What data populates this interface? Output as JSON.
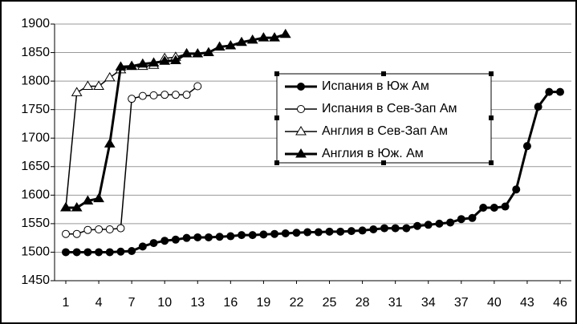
{
  "chart_data": {
    "type": "line",
    "xlim": [
      1,
      46
    ],
    "xticks": [
      1,
      4,
      7,
      10,
      13,
      16,
      19,
      22,
      25,
      28,
      31,
      34,
      37,
      40,
      43,
      46
    ],
    "ylim": [
      1450,
      1900
    ],
    "yticks": [
      1450,
      1500,
      1550,
      1600,
      1650,
      1700,
      1750,
      1800,
      1850,
      1900
    ],
    "grid": true,
    "legend": "upper center",
    "series": [
      {
        "name": "Испания в Юж Ам",
        "color": "#000000",
        "marker": "circle",
        "marker_fill": "#000000",
        "line_width": 3,
        "x": [
          1,
          2,
          3,
          4,
          5,
          6,
          7,
          8,
          9,
          10,
          11,
          12,
          13,
          14,
          15,
          16,
          17,
          18,
          19,
          20,
          21,
          22,
          23,
          24,
          25,
          26,
          27,
          28,
          29,
          30,
          31,
          32,
          33,
          34,
          35,
          36,
          37,
          38,
          39,
          40,
          41,
          42,
          43,
          44,
          45,
          46
        ],
        "values": [
          1500,
          1500,
          1500,
          1500,
          1500,
          1501,
          1502,
          1510,
          1516,
          1520,
          1522,
          1525,
          1526,
          1526,
          1527,
          1528,
          1530,
          1530,
          1531,
          1532,
          1533,
          1534,
          1535,
          1535,
          1536,
          1536,
          1537,
          1538,
          1540,
          1542,
          1542,
          1542,
          1546,
          1548,
          1550,
          1552,
          1558,
          1560,
          1578,
          1578,
          1580,
          1610,
          1686,
          1755,
          1781,
          1781
        ]
      },
      {
        "name": "Испания в Сев-Зап Ам",
        "color": "#000000",
        "marker": "circle",
        "marker_fill": "#ffffff",
        "line_width": 1.5,
        "x": [
          1,
          2,
          3,
          4,
          5,
          6,
          7,
          8,
          9,
          10,
          11,
          12,
          13
        ],
        "values": [
          1532,
          1532,
          1539,
          1540,
          1540,
          1542,
          1769,
          1774,
          1775,
          1776,
          1776,
          1776,
          1791
        ]
      },
      {
        "name": "Англия в Сев-Зап Ам",
        "color": "#000000",
        "marker": "triangle",
        "marker_fill": "#ffffff",
        "line_width": 1.5,
        "x": [
          1,
          2,
          3,
          4,
          5,
          6,
          7,
          8,
          9,
          10,
          11,
          12
        ],
        "values": [
          1578,
          1780,
          1791,
          1791,
          1806,
          1820,
          1826,
          1826,
          1828,
          1840,
          1842,
          1848
        ]
      },
      {
        "name": "Англия в Юж. Ам",
        "color": "#000000",
        "marker": "triangle",
        "marker_fill": "#000000",
        "line_width": 3,
        "x": [
          1,
          2,
          3,
          4,
          5,
          6,
          7,
          8,
          9,
          10,
          11,
          12,
          13,
          14,
          15,
          16,
          17,
          18,
          19,
          20,
          21
        ],
        "values": [
          1578,
          1578,
          1590,
          1594,
          1690,
          1825,
          1826,
          1830,
          1832,
          1835,
          1836,
          1848,
          1848,
          1850,
          1860,
          1862,
          1868,
          1872,
          1876,
          1876,
          1882
        ]
      }
    ]
  }
}
